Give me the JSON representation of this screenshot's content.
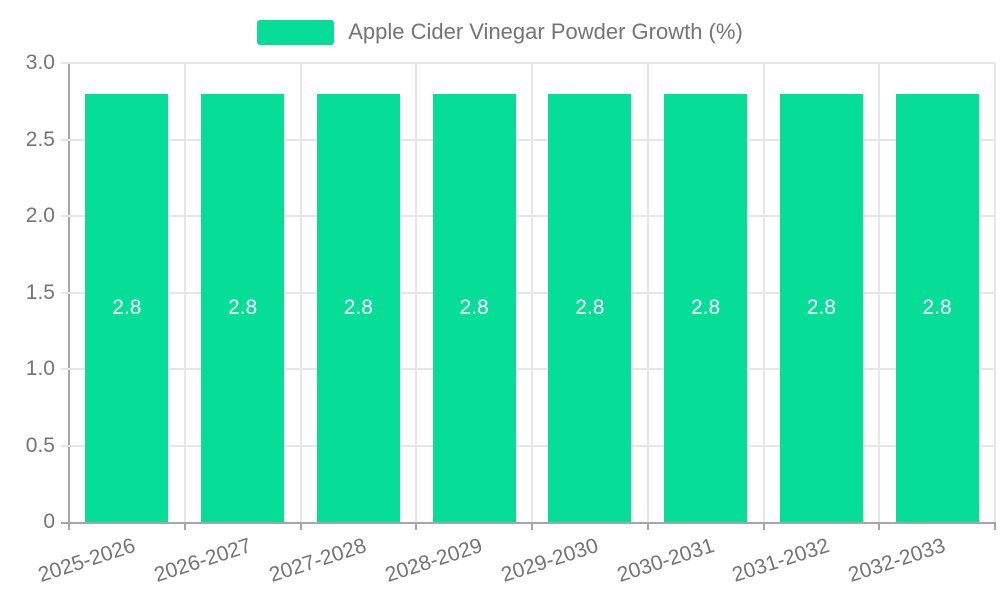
{
  "chart_data": {
    "type": "bar",
    "title": "",
    "xlabel": "",
    "ylabel": "",
    "legend": {
      "position": "top",
      "entries": [
        "Apple Cider Vinegar Powder Growth (%)"
      ]
    },
    "categories": [
      "2025-2026",
      "2026-2027",
      "2027-2028",
      "2028-2029",
      "2029-2030",
      "2030-2031",
      "2031-2032",
      "2032-2033"
    ],
    "series": [
      {
        "name": "Apple Cider Vinegar Powder Growth (%)",
        "values": [
          2.8,
          2.8,
          2.8,
          2.8,
          2.8,
          2.8,
          2.8,
          2.8
        ],
        "color": "#06de98"
      }
    ],
    "value_labels": [
      "2.8",
      "2.8",
      "2.8",
      "2.8",
      "2.8",
      "2.8",
      "2.8",
      "2.8"
    ],
    "value_label_color": "#ffffff",
    "ylim": [
      0,
      3
    ],
    "ytick_values": [
      0,
      0.5,
      1,
      1.5,
      2,
      2.5,
      3
    ],
    "ytick_labels": [
      "0",
      "0.5",
      "1.0",
      "1.5",
      "2.0",
      "2.5",
      "3.0"
    ],
    "grid": true,
    "x_label_rotation_deg": -18,
    "colors": {
      "axis": "#a6a6a6",
      "grid": "#e6e6e6",
      "text": "#757575",
      "background": "#ffffff"
    }
  }
}
